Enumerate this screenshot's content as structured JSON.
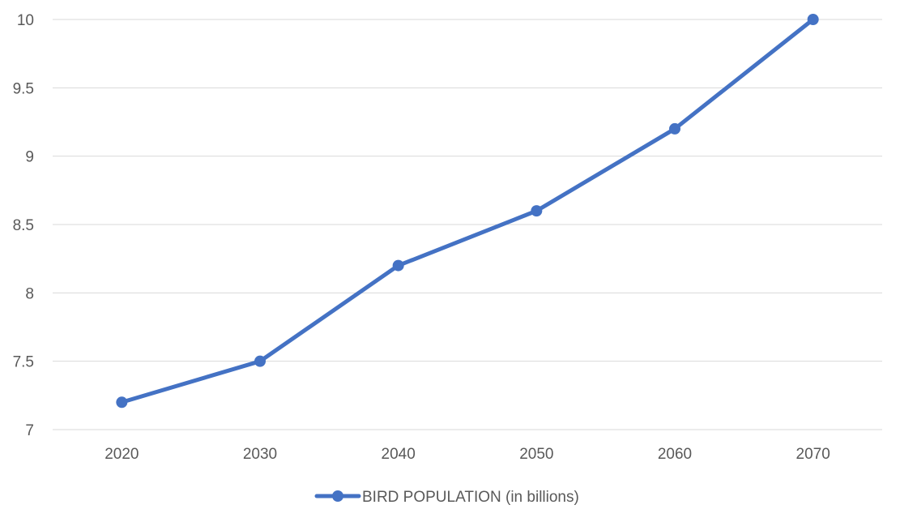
{
  "chart_data": {
    "type": "line",
    "title": "",
    "xlabel": "",
    "ylabel": "",
    "categories": [
      "2020",
      "2030",
      "2040",
      "2050",
      "2060",
      "2070"
    ],
    "series": [
      {
        "name": "BIRD POPULATION (in billions)",
        "values": [
          7.2,
          7.5,
          8.2,
          8.6,
          9.2,
          10
        ],
        "color": "#4472c4",
        "marker": "circle"
      }
    ],
    "ylim": [
      7,
      10
    ],
    "yticks": [
      "7",
      "7.5",
      "8",
      "8.5",
      "9",
      "9.5",
      "10"
    ],
    "grid": true,
    "legend": "bottom"
  }
}
